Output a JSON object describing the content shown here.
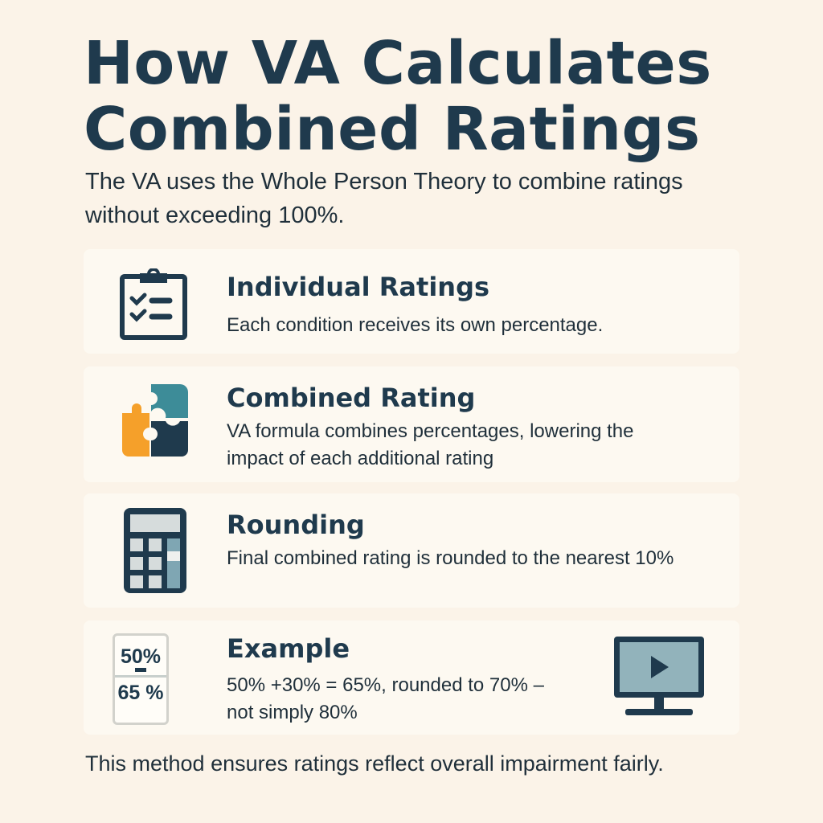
{
  "title": {
    "line1": "How VA Calculates",
    "line2": "Combined Ratings"
  },
  "subtitle": "The VA uses the Whole Person Theory to combine ratings without exceeding 100%.",
  "cards": [
    {
      "icon": "clipboard-checklist-icon",
      "title": "Individual Ratings",
      "desc": "Each condition receives its own percentage."
    },
    {
      "icon": "puzzle-icon",
      "title": "Combined Rating",
      "desc": "VA formula combines percentages, lowering the impact of each additional rating"
    },
    {
      "icon": "calculator-icon",
      "title": "Rounding",
      "desc": "Final combined rating is rounded to the nearest 10%"
    },
    {
      "icon": "fraction-icon",
      "title": "Example",
      "desc": "50% +30% = 65%, rounded to 70% – not simply 80%",
      "fraction_top": "50%",
      "fraction_bottom": "65 %"
    }
  ],
  "video_icon": "monitor-play-icon",
  "footer": "This method ensures ratings reflect overall impairment fairly.",
  "colors": {
    "navy": "#1f3a4d",
    "teal": "#3d8c98",
    "orange": "#f5a02a",
    "bg": "#fbf3e8"
  }
}
